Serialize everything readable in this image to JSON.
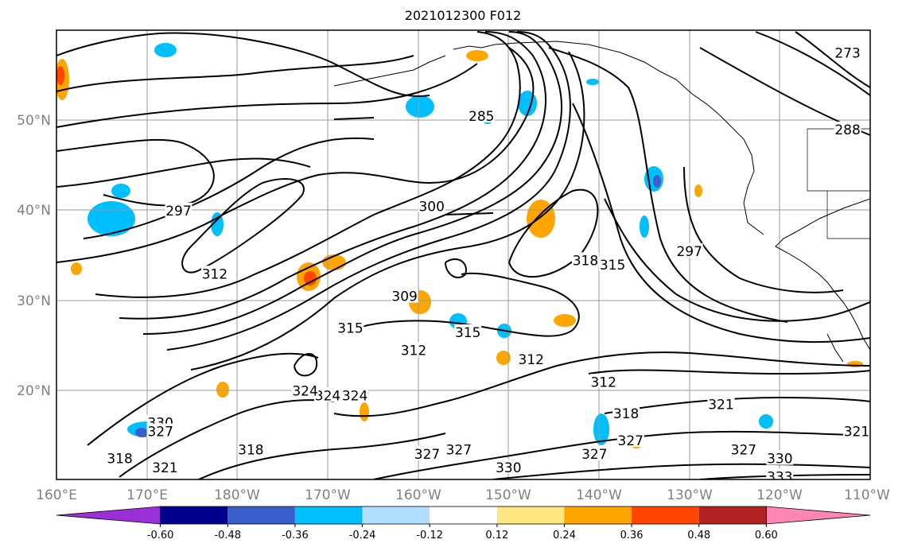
{
  "title": "2021012300 F012",
  "lon_labels": [
    "160°E",
    "170°E",
    "180°W",
    "170°W",
    "160°W",
    "150°W",
    "140°W",
    "130°W",
    "120°W",
    "110°W"
  ],
  "lat_labels": [
    "50°N",
    "40°N",
    "30°N",
    "20°N"
  ],
  "colorbar": {
    "ticks": [
      "-0.60",
      "-0.48",
      "-0.36",
      "-0.24",
      "-0.12",
      "0.12",
      "0.24",
      "0.36",
      "0.48",
      "0.60"
    ],
    "colors": [
      "#9b30d9",
      "#00008b",
      "#3a5fcd",
      "#00bfff",
      "#b2dfff",
      "#ffffff",
      "#ffe680",
      "#ffa500",
      "#ff4500",
      "#b22222",
      "#ff85b3"
    ]
  },
  "contour_labels": [
    "285",
    "297",
    "300",
    "309",
    "312",
    "315",
    "318",
    "324",
    "330",
    "321",
    "327",
    "333",
    "273",
    "288"
  ],
  "contour_label_placements": [
    {
      "text": "285",
      "lon": -153,
      "lat": 50.0
    },
    {
      "text": "297",
      "lon": 173.5,
      "lat": 39.5
    },
    {
      "text": "300",
      "lon": -158.5,
      "lat": 40.0
    },
    {
      "text": "312",
      "lon": 177.5,
      "lat": 32.5
    },
    {
      "text": "309",
      "lon": -161.5,
      "lat": 30.0
    },
    {
      "text": "315",
      "lon": -167.5,
      "lat": 26.5
    },
    {
      "text": "312",
      "lon": -160.5,
      "lat": 24.0
    },
    {
      "text": "315",
      "lon": -154.5,
      "lat": 26.0
    },
    {
      "text": "318",
      "lon": -141.5,
      "lat": 34.0
    },
    {
      "text": "315",
      "lon": -138.5,
      "lat": 33.5
    },
    {
      "text": "312",
      "lon": -147.5,
      "lat": 23.0
    },
    {
      "text": "312",
      "lon": -139.5,
      "lat": 20.5
    },
    {
      "text": "297",
      "lon": -130.0,
      "lat": 35.0
    },
    {
      "text": "273",
      "lon": -112.5,
      "lat": 57.0
    },
    {
      "text": "288",
      "lon": -112.5,
      "lat": 48.5
    },
    {
      "text": "324",
      "lon": -170.0,
      "lat": 19.0
    },
    {
      "text": "324",
      "lon": -167.0,
      "lat": 19.0
    },
    {
      "text": "324",
      "lon": -172.5,
      "lat": 19.5
    },
    {
      "text": "330",
      "lon": 171.5,
      "lat": 16.0
    },
    {
      "text": "327",
      "lon": 171.5,
      "lat": 15.0
    },
    {
      "text": "318",
      "lon": -178.5,
      "lat": 13.0
    },
    {
      "text": "321",
      "lon": 172.0,
      "lat": 11.0
    },
    {
      "text": "318",
      "lon": 167.0,
      "lat": 12.0
    },
    {
      "text": "327",
      "lon": -159.0,
      "lat": 12.5
    },
    {
      "text": "327",
      "lon": -155.5,
      "lat": 13.0
    },
    {
      "text": "330",
      "lon": -150.0,
      "lat": 11.0
    },
    {
      "text": "327",
      "lon": -140.5,
      "lat": 12.5
    },
    {
      "text": "327",
      "lon": -136.5,
      "lat": 14.0
    },
    {
      "text": "318",
      "lon": -137.0,
      "lat": 17.0
    },
    {
      "text": "321",
      "lon": -126.5,
      "lat": 18.0
    },
    {
      "text": "327",
      "lon": -124.0,
      "lat": 13.0
    },
    {
      "text": "330",
      "lon": -120.0,
      "lat": 12.0
    },
    {
      "text": "333",
      "lon": -120.0,
      "lat": 10.0
    },
    {
      "text": "321",
      "lon": -111.5,
      "lat": 15.0
    }
  ]
}
